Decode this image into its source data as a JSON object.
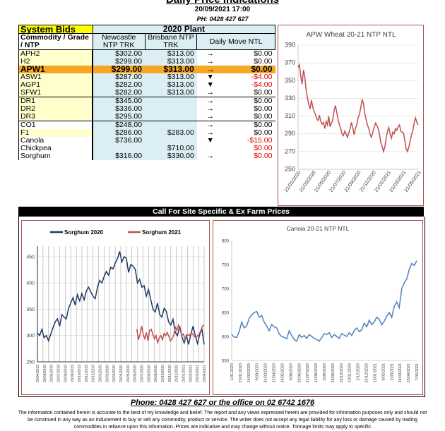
{
  "header": {
    "title": "Daily Price Indications",
    "date": "20/09/2021 17:00",
    "phone": "PH: 0428 427 627"
  },
  "table": {
    "section_title": "System Bids",
    "plant_title": "2020 Plant",
    "col_grade": "Commodity / Grade / NTP",
    "col_newcastle": "Newcastle NTP TRK",
    "col_brisbane": "Brisbane NTP TRK",
    "col_move": "Daily  Move NTL",
    "rows": [
      {
        "grade": "APH2",
        "newcastle": "$302.00",
        "brisbane": "$313.00",
        "arrow": "→",
        "move": "$0.00"
      },
      {
        "grade": "H2",
        "newcastle": "$299.00",
        "brisbane": "$313.00",
        "arrow": "→",
        "move": "$0.00"
      },
      {
        "grade": "APW1",
        "newcastle": "$299.00",
        "brisbane": "$313.00",
        "arrow": "→",
        "move": "$0.00"
      },
      {
        "grade": "ASW1",
        "newcastle": "$287.00",
        "brisbane": "$313.00",
        "arrow": "▼",
        "move": "-$4.00"
      },
      {
        "grade": "AGP1",
        "newcastle": "$282.00",
        "brisbane": "$313.00",
        "arrow": "▼",
        "move": "-$4.00"
      },
      {
        "grade": "SFW1",
        "newcastle": "$282.00",
        "brisbane": "$313.00",
        "arrow": "→",
        "move": "$0.00"
      },
      {
        "grade": "DR1",
        "newcastle": "$345.00",
        "brisbane": "",
        "arrow": "→",
        "move": "$0.00"
      },
      {
        "grade": "DR2",
        "newcastle": "$336.00",
        "brisbane": "",
        "arrow": "→",
        "move": "$0.00"
      },
      {
        "grade": "DR3",
        "newcastle": "$295.00",
        "brisbane": "",
        "arrow": "→",
        "move": "$0.00"
      },
      {
        "grade": "CO1",
        "newcastle": "$248.00",
        "brisbane": "",
        "arrow": "→",
        "move": "$0.00"
      },
      {
        "grade": "F1",
        "newcastle": "$286.00",
        "brisbane": "$283.00",
        "arrow": "→",
        "move": "$0.00"
      },
      {
        "grade": "Canola",
        "newcastle": "$736.00",
        "brisbane": "",
        "arrow": "▼",
        "move": "-$15.00"
      },
      {
        "grade": "Chickpea",
        "newcastle": "",
        "brisbane": "$710.00",
        "arrow": "",
        "move": "$0.00"
      },
      {
        "grade": "Sorghum",
        "newcastle": "$316.00",
        "brisbane": "$330.00",
        "arrow": "→",
        "move": "$0.00"
      }
    ]
  },
  "call_bar": "Call For Site Specific & Ex Farm Prices",
  "footer": {
    "phone_line": "Phone: 0428 427 627 or the office on 02 6742 1676",
    "disclaimer": "The information contained herein is accurate to the best of my knowledge and belief. The report and any views expressed herein are provided for information purposes only and should not be construed in any way as an inducement to buy or sell any commodity, product or service. The writer does not accept any legal liability for any loss or damage caused by trading commodities in reliance upon this information. Prices are indicative and may change without notice. Tonnage limits may apply to specific"
  },
  "colors": {
    "highlight": "#f5a623",
    "yellow": "#ffff00",
    "light_yellow": "#ffffcc",
    "light_blue": "#dbeef4",
    "negative": "#e00000",
    "wheat_line": "#c0504d",
    "sorghum_2020": "#1f3864",
    "sorghum_2021": "#c0504d",
    "canola_line": "#4f81bd"
  },
  "chart_data": [
    {
      "type": "line",
      "title": "APW Wheat 20-21 NTP NTL",
      "ylim": [
        250,
        390
      ],
      "yticks": [
        250,
        270,
        290,
        310,
        330,
        350,
        370,
        390
      ],
      "xticks": [
        "21/01/2020",
        "21/03/2020",
        "21/05/2020",
        "21/07/2020",
        "21/09/2020",
        "21/11/2020",
        "21/01/2021",
        "21/03/2021",
        "21/05/2021"
      ],
      "series": [
        {
          "name": "",
          "values": [
            365,
            368,
            355,
            346,
            362,
            355,
            340,
            331,
            323,
            318,
            328,
            320,
            315,
            312,
            307,
            305,
            311,
            304,
            301,
            303,
            296,
            304,
            300,
            310,
            298,
            302,
            306,
            316,
            322,
            314,
            306,
            300,
            296,
            290,
            288,
            293,
            290,
            286,
            291,
            296,
            303,
            297,
            289,
            296,
            300,
            308,
            312,
            320,
            329,
            324,
            313,
            306,
            300,
            296,
            289,
            286,
            292,
            297,
            302,
            300,
            296,
            290,
            280,
            276,
            270,
            275,
            285,
            293,
            297,
            290,
            285,
            292,
            290,
            296,
            294,
            298,
            300,
            293,
            292,
            291,
            283,
            273,
            270,
            275,
            282,
            289,
            293,
            302,
            308,
            303,
            300
          ]
        }
      ]
    },
    {
      "type": "line",
      "title": "",
      "legend": [
        "Sorghum 2020",
        "Sorghum 2021"
      ],
      "ylim": [
        250,
        470
      ],
      "yticks": [
        250,
        300,
        350,
        400,
        450
      ],
      "xticks": [
        "20/04/2019",
        "20/05/2019",
        "20/06/2019",
        "20/07/2019",
        "20/08/2019",
        "20/09/2019",
        "20/10/2019",
        "20/11/2019",
        "20/12/2019",
        "20/01/2020",
        "20/02/2020",
        "20/03/2020",
        "20/04/2020",
        "20/05/2020",
        "20/06/2020",
        "20/07/2020",
        "20/08/2020",
        "20/09/2020",
        "20/10/2020",
        "20/11/2020",
        "20/12/2020",
        "20/01/2021",
        "20/02/2021",
        "20/03/2021",
        "20/04/2021"
      ],
      "series": [
        {
          "name": "Sorghum 2020",
          "values": [
            305,
            300,
            312,
            296,
            300,
            290,
            303,
            315,
            326,
            332,
            318,
            340,
            335,
            332,
            352,
            362,
            372,
            358,
            378,
            366,
            380,
            368,
            385,
            392,
            383,
            375,
            370,
            392,
            405,
            400,
            412,
            422,
            415,
            430,
            427,
            438,
            446,
            460,
            440,
            450,
            447,
            420,
            435,
            432,
            426,
            400,
            407,
            392,
            395,
            375,
            388,
            368,
            350,
            345,
            362,
            340,
            335,
            352,
            346,
            326,
            320,
            331,
            306,
            300,
            318,
            298,
            286,
            300,
            283,
            302,
            318,
            300,
            285,
            302,
            312,
            283
          ]
        },
        {
          "name": "Sorghum 2021",
          "values": [
            null,
            null,
            null,
            null,
            null,
            null,
            null,
            null,
            null,
            null,
            null,
            null,
            null,
            null,
            null,
            null,
            null,
            null,
            null,
            null,
            null,
            null,
            null,
            null,
            null,
            null,
            null,
            null,
            null,
            null,
            null,
            null,
            null,
            null,
            null,
            null,
            null,
            null,
            null,
            null,
            null,
            null,
            null,
            null,
            null,
            null,
            null,
            null,
            null,
            null,
            null,
            null,
            null,
            null,
            null,
            null,
            null,
            null,
            null,
            null,
            null,
            null,
            312,
            292,
            302,
            318,
            302,
            294,
            306,
            290,
            310,
            312,
            302,
            294,
            300,
            286,
            296,
            300,
            292,
            304,
            300,
            306,
            298,
            290,
            294,
            300,
            316,
            310,
            320,
            312,
            300,
            303,
            294,
            298,
            302,
            300,
            306,
            302,
            298,
            296,
            300,
            303,
            310,
            318,
            320
          ]
        }
      ]
    },
    {
      "type": "line",
      "title": "Canola 20-21 NTP NTL",
      "ylim": [
        550,
        800
      ],
      "yticks": [
        550,
        600,
        650,
        700,
        750,
        800
      ],
      "xticks": [
        "1/01/2020",
        "23/01/2020",
        "14/02/2020",
        "9/03/2020",
        "31/03/2020",
        "22/04/2020",
        "14/05/2020",
        "5/06/2020",
        "29/06/2020",
        "21/07/2020",
        "12/08/2020",
        "3/09/2020",
        "25/09/2020",
        "19/10/2020",
        "10/11/2020",
        "2/12/2020",
        "24/12/2020",
        "15/01/2021",
        "8/02/2021",
        "2/03/2021",
        "24/03/2021",
        "15/04/2021",
        "7/05/2021"
      ],
      "series": [
        {
          "name": "",
          "values": [
            604,
            599,
            598,
            610,
            630,
            618,
            622,
            638,
            645,
            650,
            652,
            640,
            644,
            630,
            622,
            612,
            625,
            620,
            618,
            605,
            600,
            598,
            595,
            612,
            602,
            594,
            590,
            604,
            598,
            602,
            596,
            604,
            600,
            596,
            594,
            590,
            598,
            606,
            604,
            608,
            598,
            604,
            600,
            596,
            606,
            603,
            600,
            608,
            602,
            612,
            618,
            610,
            614,
            628,
            620,
            634,
            625,
            630,
            640,
            636,
            624,
            632,
            642,
            650,
            640,
            662,
            672,
            660,
            700,
            712,
            720,
            740,
            752,
            748,
            758
          ]
        }
      ]
    }
  ]
}
